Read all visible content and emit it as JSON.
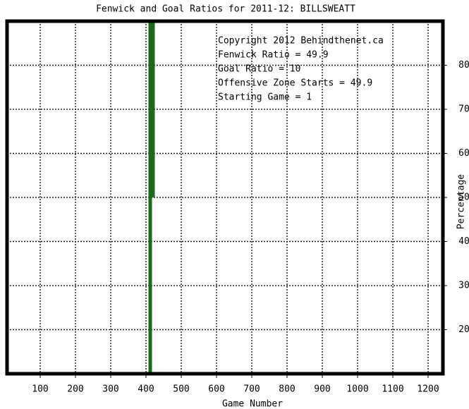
{
  "chart_data": {
    "type": "line",
    "title": "Fenwick and Goal Ratios for 2011-12: BILLSWEATT",
    "x_label": "Game Number",
    "y_label": "Percentage",
    "xlim": [
      6,
      1242
    ],
    "ylim": [
      10,
      90
    ],
    "xticks": [
      100,
      200,
      300,
      400,
      500,
      600,
      700,
      800,
      900,
      1000,
      1100,
      1200
    ],
    "yticks": [
      20,
      30,
      40,
      50,
      60,
      70,
      80
    ],
    "grid": true,
    "annotations": [
      {
        "text": "Copyright 2012 Behindthenet.ca",
        "color": "#000000"
      },
      {
        "text": "Fenwick Ratio = 49.9",
        "color": "#1a1a6e"
      },
      {
        "text": "Goal Ratio = 10",
        "color": "#8b5a2b"
      },
      {
        "text": "Offensive Zone Starts = 49.9",
        "color": "#006400"
      },
      {
        "text": "Starting Game = 1",
        "color": "#000000"
      }
    ],
    "series": [
      {
        "color": "#1a6b1a",
        "x": [
          412,
          412,
          420,
          420
        ],
        "values": [
          10,
          90,
          90,
          50
        ]
      }
    ]
  }
}
